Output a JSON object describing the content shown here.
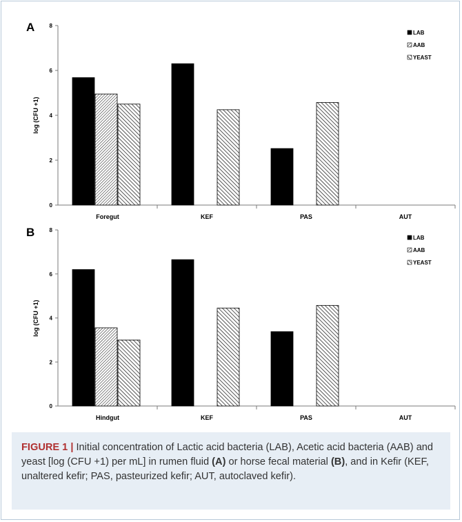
{
  "colors": {
    "frame": "#b7c8d8",
    "caption_bg": "#e7eef5",
    "figure_label": "#b03030",
    "bar_dark": "#000000",
    "axis": "#7a7a7a"
  },
  "chart_data": [
    {
      "type": "bar",
      "panel_label": "A",
      "categories": [
        "Foregut",
        "KEF",
        "PAS",
        "AUT"
      ],
      "ylabel": "log (CFU +1)",
      "ylim": [
        0,
        8
      ],
      "yticks": [
        0,
        2,
        4,
        6,
        8
      ],
      "grid": false,
      "legend_position": "top-right",
      "series": [
        {
          "name": "LAB",
          "pattern": "solid",
          "values": [
            5.68,
            6.3,
            2.52,
            0
          ]
        },
        {
          "name": "AAB",
          "pattern": "hatch-fine",
          "values": [
            4.95,
            0,
            0,
            0
          ]
        },
        {
          "name": "YEAST",
          "pattern": "hatch-wide",
          "values": [
            4.5,
            4.25,
            4.57,
            0
          ]
        }
      ]
    },
    {
      "type": "bar",
      "panel_label": "B",
      "categories": [
        "Hindgut",
        "KEF",
        "PAS",
        "AUT"
      ],
      "ylabel": "log (CFU +1)",
      "ylim": [
        0,
        8
      ],
      "yticks": [
        0,
        2,
        4,
        6,
        8
      ],
      "grid": false,
      "legend_position": "top-right",
      "series": [
        {
          "name": "LAB",
          "pattern": "solid",
          "values": [
            6.2,
            6.65,
            3.38,
            0
          ]
        },
        {
          "name": "AAB",
          "pattern": "hatch-fine",
          "values": [
            3.55,
            0,
            0,
            0
          ]
        },
        {
          "name": "YEAST",
          "pattern": "hatch-wide",
          "values": [
            3.0,
            4.45,
            4.57,
            0
          ]
        }
      ]
    }
  ],
  "caption": {
    "label": "FIGURE 1 |",
    "part1": " Initial concentration of Lactic acid bacteria (LAB), Acetic acid bacteria (AAB) and yeast [log (CFU +1) per mL] in rumen fluid ",
    "ref_a": "(A)",
    "part2": " or horse fecal material ",
    "ref_b": "(B)",
    "part3": ", and in Kefir (KEF, unaltered kefir; PAS, pasteurized kefir; AUT, autoclaved kefir)."
  }
}
